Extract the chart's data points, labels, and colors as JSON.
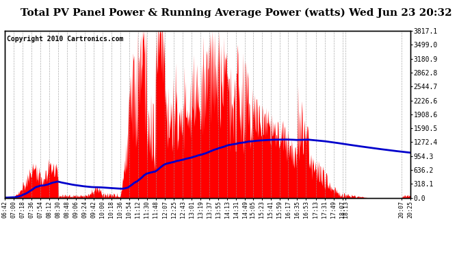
{
  "title": "Total PV Panel Power & Running Average Power (watts) Wed Jun 23 20:32",
  "copyright": "Copyright 2010 Cartronics.com",
  "y_ticks": [
    0.0,
    318.1,
    636.2,
    954.3,
    1272.4,
    1590.5,
    1908.6,
    2226.6,
    2544.7,
    2862.8,
    3180.9,
    3499.0,
    3817.1
  ],
  "ymax": 3817.1,
  "ymin": 0.0,
  "x_labels": [
    "06:42",
    "07:00",
    "07:18",
    "07:36",
    "07:54",
    "08:12",
    "08:30",
    "08:48",
    "09:06",
    "09:24",
    "09:42",
    "10:00",
    "10:18",
    "10:36",
    "10:54",
    "11:12",
    "11:30",
    "11:48",
    "12:07",
    "12:25",
    "12:43",
    "13:01",
    "13:19",
    "13:37",
    "13:55",
    "14:13",
    "14:31",
    "14:49",
    "15:05",
    "15:23",
    "15:41",
    "15:59",
    "16:17",
    "16:35",
    "16:53",
    "17:13",
    "17:31",
    "17:49",
    "18:07",
    "18:13",
    "20:07",
    "20:25"
  ],
  "fill_color": "#FF0000",
  "line_color": "#0000CC",
  "bg_color": "#FFFFFF",
  "grid_color": "#999999",
  "title_fontsize": 11,
  "copyright_fontsize": 7
}
